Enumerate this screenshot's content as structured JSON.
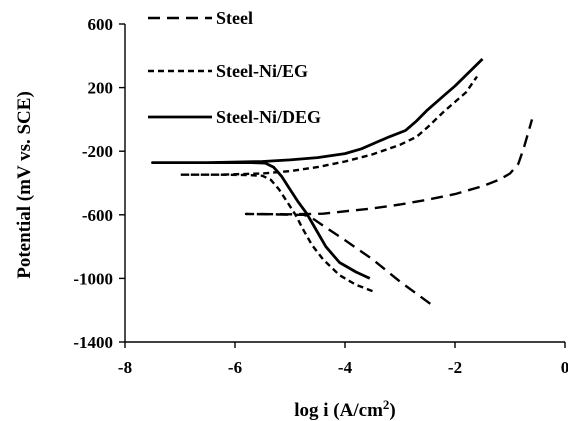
{
  "chart_data": {
    "type": "line",
    "title": "",
    "xlabel": "log i (A/cm",
    "xlabel_sup": "2",
    "xlabel_close": ")",
    "ylabel": "Potential (mV vs. SCE)",
    "xlim": [
      -8,
      0
    ],
    "ylim": [
      -1400,
      600
    ],
    "x_ticks": [
      -8,
      -6,
      -4,
      -2,
      0
    ],
    "y_ticks": [
      600,
      200,
      -200,
      -600,
      -1000,
      -1400
    ],
    "legend_position": "top-left",
    "grid": false,
    "series": [
      {
        "name": "Steel",
        "style": "long-dash",
        "color": "#000000",
        "points": [
          [
            -2.45,
            -1160
          ],
          [
            -3.0,
            -1020
          ],
          [
            -3.5,
            -880
          ],
          [
            -4.0,
            -760
          ],
          [
            -4.35,
            -680
          ],
          [
            -4.6,
            -620
          ],
          [
            -4.75,
            -600
          ],
          [
            -5.0,
            -600
          ],
          [
            -5.3,
            -597
          ],
          [
            -5.8,
            -595
          ],
          [
            -5.0,
            -597
          ],
          [
            -4.4,
            -593
          ],
          [
            -4.0,
            -578
          ],
          [
            -3.5,
            -560
          ],
          [
            -3.0,
            -535
          ],
          [
            -2.5,
            -505
          ],
          [
            -2.0,
            -470
          ],
          [
            -1.5,
            -420
          ],
          [
            -1.2,
            -380
          ],
          [
            -1.0,
            -340
          ],
          [
            -0.85,
            -280
          ],
          [
            -0.75,
            -180
          ],
          [
            -0.65,
            -60
          ],
          [
            -0.6,
            0
          ]
        ]
      },
      {
        "name": "Steel-Ni/EG",
        "style": "short-dash",
        "color": "#000000",
        "points": [
          [
            -3.5,
            -1080
          ],
          [
            -3.8,
            -1040
          ],
          [
            -4.1,
            -980
          ],
          [
            -4.4,
            -880
          ],
          [
            -4.6,
            -790
          ],
          [
            -4.75,
            -700
          ],
          [
            -4.9,
            -600
          ],
          [
            -5.05,
            -520
          ],
          [
            -5.2,
            -440
          ],
          [
            -5.35,
            -380
          ],
          [
            -5.5,
            -355
          ],
          [
            -5.8,
            -350
          ],
          [
            -6.3,
            -348
          ],
          [
            -7.0,
            -348
          ],
          [
            -6.3,
            -348
          ],
          [
            -5.5,
            -340
          ],
          [
            -5.0,
            -325
          ],
          [
            -4.5,
            -300
          ],
          [
            -4.0,
            -265
          ],
          [
            -3.5,
            -220
          ],
          [
            -3.0,
            -160
          ],
          [
            -2.7,
            -110
          ],
          [
            -2.5,
            -50
          ],
          [
            -2.2,
            50
          ],
          [
            -2.0,
            110
          ],
          [
            -1.8,
            170
          ],
          [
            -1.6,
            270
          ]
        ]
      },
      {
        "name": "Steel-Ni/DEG",
        "style": "solid",
        "color": "#000000",
        "points": [
          [
            -3.55,
            -1000
          ],
          [
            -3.8,
            -960
          ],
          [
            -4.1,
            -900
          ],
          [
            -4.35,
            -800
          ],
          [
            -4.55,
            -680
          ],
          [
            -4.7,
            -590
          ],
          [
            -4.85,
            -520
          ],
          [
            -5.0,
            -440
          ],
          [
            -5.15,
            -360
          ],
          [
            -5.3,
            -300
          ],
          [
            -5.45,
            -275
          ],
          [
            -5.7,
            -272
          ],
          [
            -6.5,
            -272
          ],
          [
            -7.5,
            -272
          ],
          [
            -6.5,
            -272
          ],
          [
            -5.5,
            -265
          ],
          [
            -5.0,
            -255
          ],
          [
            -4.5,
            -240
          ],
          [
            -4.0,
            -215
          ],
          [
            -3.7,
            -185
          ],
          [
            -3.5,
            -155
          ],
          [
            -3.2,
            -110
          ],
          [
            -2.9,
            -70
          ],
          [
            -2.7,
            -10
          ],
          [
            -2.5,
            60
          ],
          [
            -2.2,
            150
          ],
          [
            -2.0,
            210
          ],
          [
            -1.5,
            380
          ]
        ]
      }
    ]
  }
}
